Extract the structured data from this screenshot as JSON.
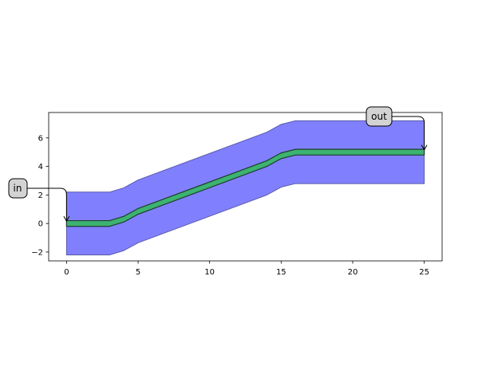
{
  "chart_data": {
    "type": "area",
    "title": "",
    "xlabel": "",
    "ylabel": "",
    "xlim": [
      -1.25,
      26.25
    ],
    "ylim": [
      -2.62,
      7.78
    ],
    "grid": false,
    "xticks": [
      0,
      5,
      10,
      15,
      20,
      25
    ],
    "yticks": [
      -2,
      0,
      2,
      4,
      6
    ],
    "xtick_labels": [
      "0",
      "5",
      "10",
      "15",
      "20",
      "25"
    ],
    "ytick_labels": [
      "−2",
      "0",
      "2",
      "4",
      "6"
    ],
    "series": [
      {
        "role": "cladding",
        "color": "#8080ff",
        "width": 4.4,
        "centerline": [
          [
            0,
            0
          ],
          [
            3,
            0
          ],
          [
            4,
            0.3
          ],
          [
            5,
            0.85
          ],
          [
            14,
            4.2
          ],
          [
            15,
            4.75
          ],
          [
            16,
            5
          ],
          [
            25,
            5
          ]
        ]
      },
      {
        "role": "core",
        "color": "#3cb371",
        "width": 0.4,
        "centerline": [
          [
            0,
            0
          ],
          [
            3,
            0
          ],
          [
            4,
            0.3
          ],
          [
            5,
            0.85
          ],
          [
            14,
            4.2
          ],
          [
            15,
            4.75
          ],
          [
            16,
            5
          ],
          [
            25,
            5
          ]
        ]
      }
    ],
    "annotations": [
      {
        "text": "in",
        "point": [
          0,
          0
        ]
      },
      {
        "text": "out",
        "point": [
          25,
          5
        ]
      }
    ]
  },
  "colors": {
    "cladding": "#8080ff",
    "core": "#3cb371",
    "label_box": "#d3d3d3"
  }
}
